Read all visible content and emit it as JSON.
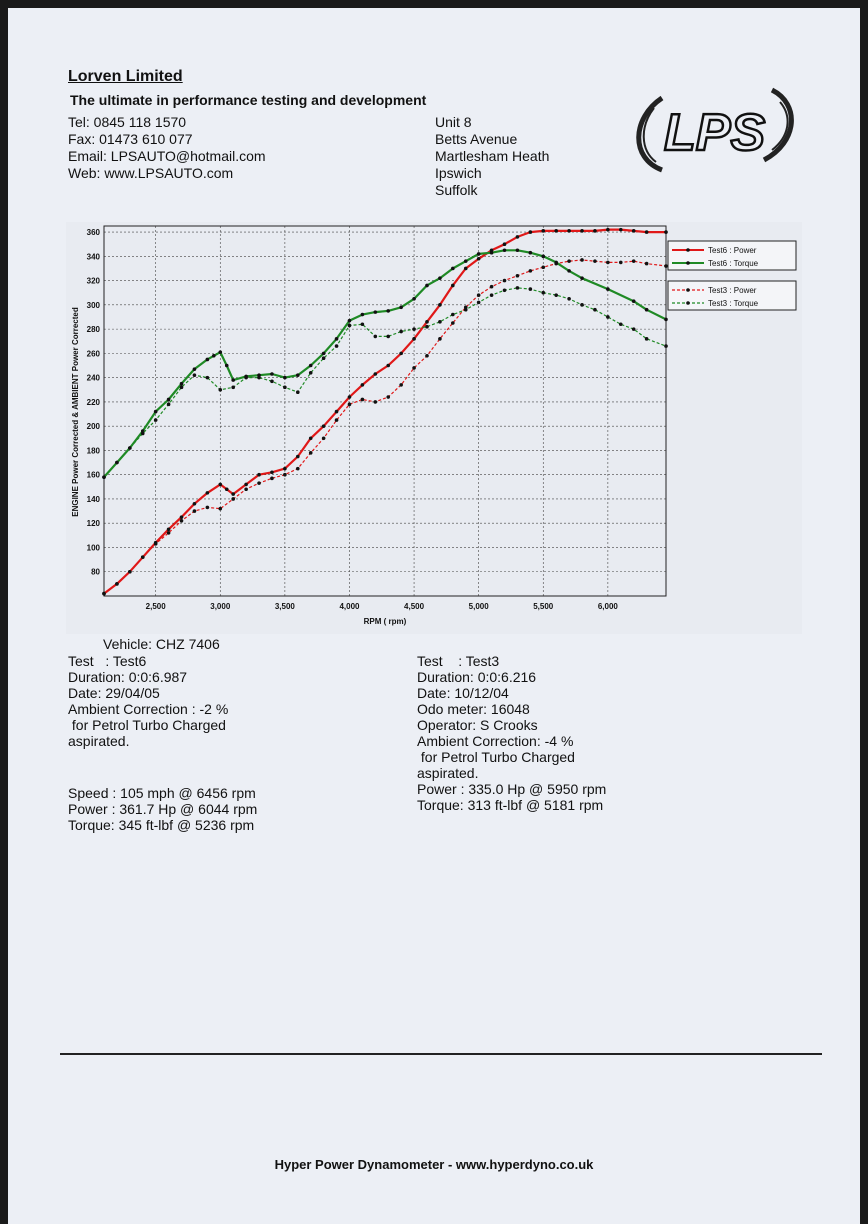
{
  "header": {
    "company": "Lorven Limited",
    "tagline": "The ultimate in performance testing and development",
    "tel": "Tel: 0845 118 1570",
    "fax": "Fax: 01473 610 077",
    "email": "Email: LPSAUTO@hotmail.com",
    "web": "Web: www.LPSAUTO.com",
    "address": [
      "Unit 8",
      "Betts Avenue",
      "Martlesham Heath",
      "Ipswich",
      "Suffolk"
    ],
    "logo_text": "LPS"
  },
  "colors": {
    "power": "#e01818",
    "torque": "#1f8a25",
    "page": "#eceff5",
    "grid": "#444444"
  },
  "chart_data": {
    "type": "line",
    "xlabel": "RPM ( rpm)",
    "ylabel": "ENGINE Power Corrected & AMBIENT Power Corrected",
    "xlim": [
      2100,
      6450
    ],
    "ylim": [
      60,
      365
    ],
    "x_ticks": [
      "2,500",
      "3,000",
      "3,500",
      "4,000",
      "4,500",
      "5,000",
      "5,500",
      "6,000"
    ],
    "x_tick_values": [
      2500,
      3000,
      3500,
      4000,
      4500,
      5000,
      5500,
      6000
    ],
    "y_ticks": [
      80,
      100,
      120,
      140,
      160,
      180,
      200,
      220,
      240,
      260,
      280,
      300,
      320,
      340,
      360
    ],
    "grid": true,
    "legend_position": "right",
    "series": [
      {
        "name": "Test6 : Power",
        "style": "solid",
        "color": "#e01818",
        "x": [
          2100,
          2200,
          2300,
          2400,
          2500,
          2600,
          2700,
          2800,
          2900,
          3000,
          3050,
          3100,
          3200,
          3300,
          3400,
          3500,
          3600,
          3700,
          3800,
          3900,
          4000,
          4100,
          4200,
          4300,
          4400,
          4500,
          4600,
          4700,
          4800,
          4900,
          5000,
          5100,
          5200,
          5300,
          5400,
          5500,
          5600,
          5700,
          5800,
          5900,
          6000,
          6100,
          6200,
          6300,
          6450
        ],
        "y": [
          62,
          70,
          80,
          92,
          104,
          115,
          125,
          136,
          145,
          152,
          148,
          144,
          152,
          160,
          162,
          165,
          175,
          190,
          200,
          212,
          224,
          234,
          243,
          250,
          260,
          272,
          286,
          300,
          316,
          330,
          338,
          345,
          350,
          356,
          360,
          361,
          361,
          361,
          361,
          361,
          362,
          362,
          361,
          360,
          360
        ]
      },
      {
        "name": "Test6 : Torque",
        "style": "solid",
        "color": "#1f8a25",
        "x": [
          2100,
          2200,
          2300,
          2400,
          2500,
          2600,
          2700,
          2800,
          2900,
          2950,
          3000,
          3050,
          3100,
          3200,
          3300,
          3400,
          3500,
          3600,
          3700,
          3800,
          3900,
          4000,
          4100,
          4200,
          4300,
          4400,
          4500,
          4600,
          4700,
          4800,
          4900,
          5000,
          5100,
          5200,
          5300,
          5400,
          5500,
          5600,
          5700,
          5800,
          6000,
          6200,
          6300,
          6450
        ],
        "y": [
          158,
          170,
          182,
          196,
          212,
          222,
          235,
          247,
          255,
          258,
          261,
          250,
          238,
          241,
          242,
          243,
          240,
          242,
          250,
          260,
          272,
          287,
          292,
          294,
          295,
          298,
          305,
          316,
          322,
          330,
          336,
          342,
          343,
          345,
          345,
          343,
          340,
          335,
          328,
          322,
          313,
          303,
          296,
          288
        ]
      },
      {
        "name": "Test3 : Power",
        "style": "dashed",
        "color": "#e01818",
        "x": [
          2100,
          2200,
          2300,
          2400,
          2500,
          2600,
          2700,
          2800,
          2900,
          3000,
          3100,
          3200,
          3300,
          3400,
          3500,
          3600,
          3700,
          3800,
          3900,
          4000,
          4100,
          4200,
          4300,
          4400,
          4500,
          4600,
          4700,
          4800,
          4900,
          5000,
          5100,
          5200,
          5300,
          5400,
          5500,
          5600,
          5700,
          5800,
          5900,
          6000,
          6100,
          6200,
          6300,
          6450
        ],
        "y": [
          62,
          70,
          80,
          92,
          103,
          112,
          122,
          130,
          133,
          132,
          140,
          148,
          153,
          157,
          160,
          165,
          178,
          190,
          205,
          218,
          222,
          220,
          224,
          234,
          248,
          258,
          272,
          285,
          298,
          308,
          315,
          320,
          324,
          328,
          331,
          334,
          336,
          337,
          336,
          335,
          335,
          336,
          334,
          332
        ]
      },
      {
        "name": "Test3 : Torque",
        "style": "dashed",
        "color": "#1f8a25",
        "x": [
          2100,
          2200,
          2300,
          2400,
          2500,
          2600,
          2700,
          2800,
          2900,
          3000,
          3100,
          3200,
          3300,
          3400,
          3500,
          3600,
          3700,
          3800,
          3900,
          4000,
          4100,
          4200,
          4300,
          4400,
          4500,
          4600,
          4700,
          4800,
          4900,
          5000,
          5100,
          5200,
          5300,
          5400,
          5500,
          5600,
          5700,
          5800,
          5900,
          6000,
          6100,
          6200,
          6300,
          6450
        ],
        "y": [
          158,
          170,
          182,
          194,
          205,
          218,
          232,
          242,
          240,
          230,
          232,
          240,
          240,
          237,
          232,
          228,
          244,
          256,
          266,
          283,
          284,
          274,
          274,
          278,
          280,
          282,
          286,
          292,
          296,
          302,
          308,
          312,
          314,
          313,
          310,
          308,
          305,
          300,
          296,
          290,
          284,
          280,
          272,
          266
        ]
      }
    ]
  },
  "test6": {
    "vehicle": "Vehicle: CHZ 7406",
    "test": "Test   : Test6",
    "duration": "Duration: 0:0:6.987",
    "date": "Date: 29/04/05",
    "ambient": "Ambient Correction : -2 %",
    "ambient_detail": " for Petrol Turbo Charged",
    "aspirated": "aspirated.",
    "speed": "Speed : 105 mph @ 6456 rpm",
    "power": "Power : 361.7 Hp @ 6044 rpm",
    "torque": "Torque: 345 ft-lbf @ 5236 rpm"
  },
  "test3": {
    "test": "Test    : Test3",
    "duration": "Duration: 0:0:6.216",
    "date": "Date: 10/12/04",
    "odo": "Odo meter: 16048",
    "operator": "Operator: S Crooks",
    "ambient": "Ambient Correction: -4 %",
    "ambient_detail": " for Petrol Turbo Charged",
    "aspirated": "aspirated.",
    "power": "Power : 335.0 Hp @ 5950 rpm",
    "torque": "Torque: 313 ft-lbf @ 5181 rpm"
  },
  "footer": "Hyper Power Dynamometer  -  www.hyperdyno.co.uk"
}
